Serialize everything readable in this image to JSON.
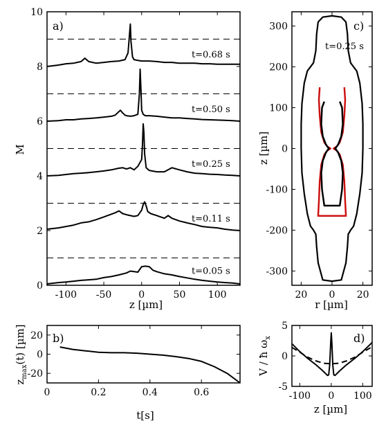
{
  "figure": {
    "panels": [
      "a)",
      "b)",
      "c)",
      "d)"
    ]
  },
  "chart_data": [
    {
      "id": "a",
      "type": "line",
      "panel_label": "a)",
      "xlabel": "z [µm]",
      "ylabel": "M",
      "xlim": [
        -125,
        130
      ],
      "ylim": [
        0,
        10
      ],
      "xticks": [
        -100,
        -50,
        0,
        50,
        100
      ],
      "xtick_labels": [
        "-100",
        "-50",
        "0",
        "50",
        "100"
      ],
      "yticks": [
        0,
        2,
        4,
        6,
        8,
        10
      ],
      "ytick_labels": [
        "0",
        "2",
        "4",
        "6",
        "8",
        "10"
      ],
      "dashed_reference_lines": [
        1,
        3,
        5,
        7,
        9
      ],
      "line_color": "#000000",
      "series": [
        {
          "name": "t=0.05 s",
          "label_anchor": [
            55,
            0.55
          ],
          "x": [
            -125,
            -110,
            -100,
            -90,
            -80,
            -70,
            -60,
            -50,
            -40,
            -30,
            -20,
            -15,
            -10,
            -5,
            0,
            5,
            10,
            15,
            20,
            30,
            40,
            50,
            60,
            70,
            80,
            90,
            100,
            110,
            120,
            130
          ],
          "y": [
            0.05,
            0.1,
            0.12,
            0.15,
            0.18,
            0.2,
            0.22,
            0.28,
            0.32,
            0.38,
            0.45,
            0.52,
            0.5,
            0.48,
            0.68,
            0.7,
            0.68,
            0.55,
            0.5,
            0.42,
            0.38,
            0.32,
            0.27,
            0.22,
            0.18,
            0.15,
            0.12,
            0.1,
            0.08,
            0.05
          ]
        },
        {
          "name": "t=0.11 s",
          "label_anchor": [
            55,
            2.45
          ],
          "x": [
            -125,
            -110,
            -100,
            -90,
            -80,
            -70,
            -60,
            -50,
            -40,
            -35,
            -30,
            -25,
            -20,
            -10,
            -5,
            0,
            2,
            4,
            6,
            8,
            12,
            20,
            30,
            35,
            40,
            50,
            60,
            70,
            80,
            90,
            100,
            110,
            120,
            130
          ],
          "y": [
            2.05,
            2.1,
            2.15,
            2.2,
            2.28,
            2.32,
            2.4,
            2.5,
            2.6,
            2.65,
            2.72,
            2.62,
            2.58,
            2.52,
            2.55,
            2.75,
            2.95,
            3.05,
            2.9,
            2.7,
            2.62,
            2.55,
            2.45,
            2.55,
            2.45,
            2.35,
            2.28,
            2.22,
            2.15,
            2.12,
            2.1,
            2.05,
            2.02,
            2.0
          ]
        },
        {
          "name": "t=0.25 s",
          "label_anchor": [
            55,
            4.45
          ],
          "x": [
            -125,
            -110,
            -100,
            -90,
            -80,
            -70,
            -60,
            -50,
            -40,
            -30,
            -25,
            -20,
            -15,
            -10,
            -5,
            0,
            1,
            2,
            3,
            4,
            6,
            10,
            20,
            30,
            40,
            50,
            60,
            70,
            80,
            90,
            100,
            110,
            120,
            130
          ],
          "y": [
            4.0,
            4.02,
            4.05,
            4.08,
            4.1,
            4.12,
            4.15,
            4.18,
            4.22,
            4.28,
            4.3,
            4.25,
            4.3,
            4.22,
            4.35,
            4.6,
            5.1,
            5.9,
            5.6,
            4.8,
            4.3,
            4.2,
            4.15,
            4.15,
            4.3,
            4.22,
            4.15,
            4.1,
            4.08,
            4.06,
            4.05,
            4.03,
            4.02,
            4.0
          ]
        },
        {
          "name": "t=0.50 s",
          "label_anchor": [
            55,
            6.45
          ],
          "x": [
            -125,
            -110,
            -100,
            -90,
            -80,
            -70,
            -60,
            -50,
            -40,
            -35,
            -30,
            -28,
            -25,
            -22,
            -20,
            -15,
            -10,
            -5,
            -3,
            -2,
            -1,
            0,
            2,
            5,
            10,
            20,
            30,
            40,
            50,
            60,
            70,
            80,
            90,
            100,
            110,
            120,
            130
          ],
          "y": [
            6.0,
            6.02,
            6.05,
            6.05,
            6.08,
            6.1,
            6.12,
            6.15,
            6.18,
            6.22,
            6.35,
            6.4,
            6.3,
            6.22,
            6.2,
            6.18,
            6.2,
            6.25,
            7.0,
            7.9,
            7.2,
            6.4,
            6.25,
            6.2,
            6.2,
            6.18,
            6.15,
            6.12,
            6.12,
            6.1,
            6.08,
            6.06,
            6.05,
            6.04,
            6.03,
            6.02,
            6.0
          ]
        },
        {
          "name": "t=0.68 s",
          "label_anchor": [
            55,
            8.45
          ],
          "x": [
            -125,
            -110,
            -100,
            -90,
            -80,
            -75,
            -70,
            -60,
            -50,
            -40,
            -30,
            -22,
            -18,
            -16,
            -15,
            -14,
            -12,
            -10,
            -5,
            0,
            10,
            20,
            30,
            40,
            50,
            60,
            70,
            80,
            90,
            100,
            110,
            120,
            130
          ],
          "y": [
            8.0,
            8.05,
            8.1,
            8.12,
            8.18,
            8.3,
            8.18,
            8.12,
            8.15,
            8.18,
            8.2,
            8.25,
            8.5,
            9.2,
            9.55,
            8.9,
            8.35,
            8.25,
            8.22,
            8.2,
            8.2,
            8.18,
            8.15,
            8.15,
            8.12,
            8.12,
            8.12,
            8.1,
            8.1,
            8.08,
            8.08,
            8.08,
            8.08
          ]
        }
      ]
    },
    {
      "id": "b",
      "type": "line",
      "panel_label": "b)",
      "xlabel": "t[s]",
      "ylabel": "z_max(t) [µm]",
      "ylabel_main": "z",
      "ylabel_sub": "max",
      "ylabel_rest": "(t) [µm]",
      "xlim": [
        0,
        0.75
      ],
      "ylim": [
        -30,
        30
      ],
      "xticks": [
        0,
        0.2,
        0.4,
        0.6
      ],
      "xtick_labels": [
        "0",
        "0.2",
        "0.4",
        "0.6"
      ],
      "yticks": [
        -20,
        0,
        20
      ],
      "ytick_labels": [
        "-20",
        "0",
        "20"
      ],
      "x": [
        0.05,
        0.1,
        0.15,
        0.2,
        0.25,
        0.3,
        0.35,
        0.4,
        0.45,
        0.5,
        0.55,
        0.6,
        0.65,
        0.7,
        0.75
      ],
      "y": [
        7.5,
        5,
        3.5,
        2,
        1.5,
        1.5,
        1,
        0,
        -1,
        -2.5,
        -4.5,
        -7.5,
        -13,
        -20,
        -30
      ]
    },
    {
      "id": "c",
      "type": "line",
      "panel_label": "c)",
      "annotation": "t=0.25 s",
      "xlabel": "r [µm]",
      "ylabel": "z [µm]",
      "xlim": [
        -26,
        26
      ],
      "ylim": [
        -335,
        335
      ],
      "xticks": [
        -20,
        0,
        20
      ],
      "xtick_labels": [
        "20",
        "0",
        "20"
      ],
      "yticks": [
        -300,
        -200,
        -100,
        0,
        100,
        200,
        300
      ],
      "ytick_labels": [
        "-300",
        "-200",
        "-100",
        "0",
        "100",
        "200",
        "300"
      ],
      "outer_boundary": {
        "color": "#000000",
        "r": [
          0,
          6,
          9,
          10,
          10.5,
          12,
          14,
          16,
          18,
          19.5,
          20,
          20,
          19.5,
          18,
          16,
          14,
          12,
          10.5,
          10,
          9,
          6,
          0
        ],
        "z": [
          325,
          322,
          310,
          280,
          240,
          210,
          200,
          190,
          160,
          110,
          60,
          0,
          -60,
          -110,
          -160,
          -190,
          -200,
          -210,
          -240,
          -280,
          -322,
          -325
        ]
      },
      "inner_black": {
        "color": "#000000",
        "r": [
          5,
          6.5,
          7,
          6,
          4,
          2.5,
          2,
          2.5,
          4,
          6,
          7,
          6.5,
          5
        ],
        "z": [
          115,
          100,
          60,
          30,
          10,
          2,
          0,
          -2,
          -10,
          -30,
          -60,
          -100,
          -140
        ]
      },
      "inner_red": {
        "color": "#cc1111",
        "r": [
          8,
          8.5,
          8,
          7,
          5,
          3,
          1,
          3,
          5,
          7,
          8,
          8.5,
          9
        ],
        "z": [
          150,
          120,
          80,
          40,
          15,
          5,
          0,
          -5,
          -15,
          -40,
          -80,
          -130,
          -165
        ]
      }
    },
    {
      "id": "d",
      "type": "line",
      "panel_label": "d)",
      "xlabel": "z [µm]",
      "ylabel": "V / ħ ω_x",
      "ylabel_main": "V / ħ ω",
      "ylabel_sub": "x",
      "xlim": [
        -125,
        130
      ],
      "ylim": [
        -5,
        5
      ],
      "xticks": [
        -100,
        0,
        100
      ],
      "xtick_labels": [
        "-100",
        "0",
        "100"
      ],
      "yticks": [
        -5,
        0,
        5
      ],
      "ytick_labels": [
        "-5",
        "0",
        "5"
      ],
      "series": [
        {
          "style": "solid",
          "x": [
            -125,
            -100,
            -75,
            -50,
            -30,
            -20,
            -12,
            -8,
            -5,
            -2,
            0,
            2,
            5,
            8,
            12,
            20,
            30,
            50,
            75,
            100,
            130
          ],
          "y": [
            2.0,
            0.7,
            -0.4,
            -1.4,
            -2.3,
            -2.8,
            -3.2,
            -3.1,
            -1.5,
            2.0,
            3.8,
            2.0,
            -1.5,
            -3.1,
            -3.2,
            -2.8,
            -2.3,
            -1.4,
            -0.4,
            0.7,
            2.2
          ]
        },
        {
          "style": "dashed",
          "x": [
            -125,
            -100,
            -75,
            -50,
            -25,
            0,
            25,
            50,
            75,
            100,
            130
          ],
          "y": [
            1.4,
            0.6,
            -0.2,
            -0.8,
            -1.2,
            -1.3,
            -1.2,
            -0.8,
            -0.2,
            0.6,
            1.5
          ]
        }
      ]
    }
  ]
}
